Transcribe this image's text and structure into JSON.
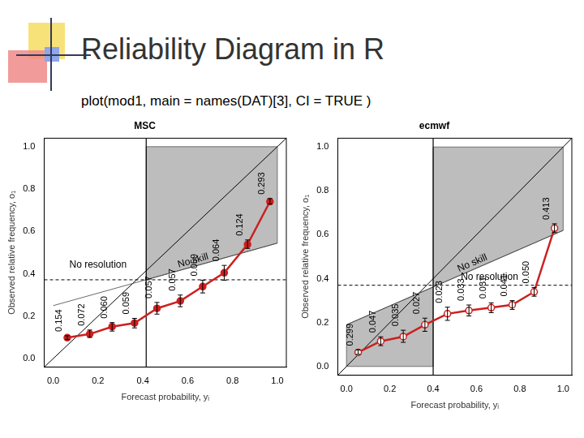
{
  "slide": {
    "title": "Reliability Diagram in R",
    "code": "plot(mod1, main = names(DAT)[3], CI = TRUE )"
  },
  "chart_data": [
    {
      "type": "line",
      "title": "MSC",
      "x_label": "Forecast probability, yᵢ",
      "y_label": "Observed relative frequency, o₁",
      "x": [
        0.063,
        0.163,
        0.263,
        0.363,
        0.463,
        0.567,
        0.667,
        0.763,
        0.867,
        0.967
      ],
      "values": [
        0.099,
        0.116,
        0.151,
        0.168,
        0.237,
        0.272,
        0.34,
        0.405,
        0.539,
        0.741
      ],
      "error_low": [
        0.09,
        0.1,
        0.13,
        0.145,
        0.21,
        0.245,
        0.31,
        0.37,
        0.52,
        0.73
      ],
      "error_high": [
        0.108,
        0.135,
        0.17,
        0.19,
        0.265,
        0.3,
        0.37,
        0.44,
        0.56,
        0.755
      ],
      "frequency_labels": [
        "0.154",
        "0.072",
        "0.060",
        "0.059",
        "0.057",
        "0.057",
        "0.059",
        "0.064",
        "0.124",
        "0.293"
      ],
      "color": "#cc2020",
      "marker": "circle",
      "xlim": [
        -0.04,
        1.04
      ],
      "ylim": [
        -0.04,
        1.04
      ],
      "xticks": [
        {
          "value": 0,
          "label": "0.0"
        },
        {
          "value": 0.2,
          "label": "0.2"
        },
        {
          "value": 0.4,
          "label": "0.4"
        },
        {
          "value": 0.6,
          "label": "0.6"
        },
        {
          "value": 0.8,
          "label": "0.8"
        },
        {
          "value": 1,
          "label": "1.0"
        }
      ],
      "yticks": [
        {
          "value": 0,
          "label": "0.0"
        },
        {
          "value": 0.2,
          "label": "0.2"
        },
        {
          "value": 0.4,
          "label": "0.4"
        },
        {
          "value": 0.6,
          "label": "0.6"
        },
        {
          "value": 0.8,
          "label": "0.8"
        },
        {
          "value": 1,
          "label": "1.0"
        }
      ],
      "grid": false,
      "climatology": {
        "x": 0.415,
        "y": 0.372
      },
      "no_skill_line": [
        [
          0,
          0.25
        ],
        [
          1,
          0.545
        ]
      ],
      "skill_regions": [
        [
          [
            0.415,
            0.372
          ],
          [
            0.415,
            1
          ],
          [
            1,
            1
          ],
          [
            1,
            0.545
          ]
        ]
      ],
      "no_skill_label": {
        "text": "No skill",
        "x": 0.63,
        "y": 0.44
      },
      "no_resolution_label": {
        "text": "No resolution",
        "x": 0.2,
        "y": 0.42
      }
    },
    {
      "type": "line",
      "title": "ecmwf",
      "x_label": "Forecast probability, yᵢ",
      "y_label": "Observed relative frequency, o₁",
      "x": [
        0.054,
        0.158,
        0.262,
        0.362,
        0.466,
        0.565,
        0.668,
        0.765,
        0.866,
        0.96
      ],
      "values": [
        0.064,
        0.115,
        0.136,
        0.19,
        0.24,
        0.255,
        0.268,
        0.281,
        0.34,
        0.63
      ],
      "error_low": [
        0.055,
        0.095,
        0.11,
        0.16,
        0.21,
        0.23,
        0.245,
        0.26,
        0.32,
        0.61
      ],
      "error_high": [
        0.075,
        0.135,
        0.165,
        0.22,
        0.27,
        0.28,
        0.29,
        0.3,
        0.36,
        0.65
      ],
      "frequency_labels": [
        "0.299",
        "0.047",
        "0.035",
        "0.027",
        "0.023",
        "0.033",
        "0.031",
        "0.041",
        "0.050",
        "0.413"
      ],
      "color": "#cc2020",
      "marker": "circle_open",
      "xlim": [
        -0.04,
        1.04
      ],
      "ylim": [
        -0.04,
        1.04
      ],
      "xticks": [
        {
          "value": 0,
          "label": "0.0"
        },
        {
          "value": 0.2,
          "label": "0.2"
        },
        {
          "value": 0.4,
          "label": "0.4"
        },
        {
          "value": 0.6,
          "label": "0.6"
        },
        {
          "value": 0.8,
          "label": "0.8"
        },
        {
          "value": 1,
          "label": "1.0"
        }
      ],
      "yticks": [
        {
          "value": 0,
          "label": "0.0"
        },
        {
          "value": 0.2,
          "label": "0.2"
        },
        {
          "value": 0.4,
          "label": "0.4"
        },
        {
          "value": 0.6,
          "label": "0.6"
        },
        {
          "value": 0.8,
          "label": "0.8"
        },
        {
          "value": 1,
          "label": "1.0"
        }
      ],
      "grid": false,
      "climatology": {
        "x": 0.4,
        "y": 0.37
      },
      "no_skill_line": [
        [
          0,
          0.19
        ],
        [
          1,
          0.62
        ]
      ],
      "skill_regions": [
        [
          [
            0,
            0
          ],
          [
            0,
            0.19
          ],
          [
            0.4,
            0.362
          ],
          [
            0.4,
            0
          ]
        ],
        [
          [
            0.4,
            0.362
          ],
          [
            0.4,
            1
          ],
          [
            1,
            1
          ],
          [
            1,
            0.62
          ]
        ]
      ],
      "no_skill_label": {
        "text": "No skill",
        "x": 0.59,
        "y": 0.45
      },
      "no_resolution_label": {
        "text": "No resolution",
        "x": 0.66,
        "y": 0.385
      }
    }
  ]
}
